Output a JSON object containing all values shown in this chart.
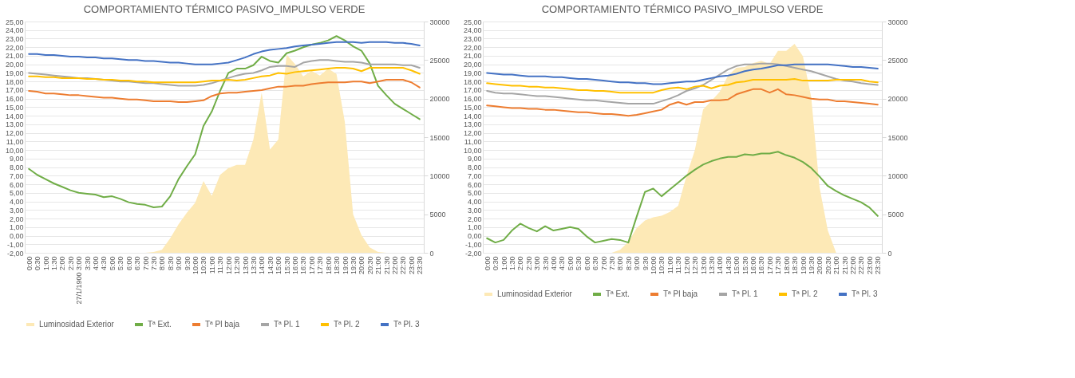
{
  "chart_data": [
    {
      "type": "line",
      "title": "COMPORTAMIENTO TÉRMICO PASIVO_IMPULSO VERDE",
      "grid": "y",
      "legend": "bottom",
      "categories": [
        "0:00",
        "0:30",
        "1:00",
        "1:30",
        "2:00",
        "2:30",
        "27/1/1900 3:00",
        "3:30",
        "4:00",
        "4:30",
        "5:00",
        "5:30",
        "6:00",
        "6:30",
        "7:00",
        "7:30",
        "8:00",
        "8:30",
        "9:00",
        "9:30",
        "10:00",
        "10:30",
        "11:00",
        "11:30",
        "12:00",
        "12:30",
        "13:00",
        "13:30",
        "14:00",
        "14:30",
        "15:00",
        "15:30",
        "16:00",
        "16:30",
        "17:00",
        "17:30",
        "18:00",
        "18:30",
        "19:00",
        "19:30",
        "20:00",
        "20:30",
        "21:00",
        "21:30",
        "22:00",
        "22:30",
        "23:00",
        "23:30"
      ],
      "ylim": [
        -2,
        25
      ],
      "yticks": [
        {
          "value": -2,
          "label": "-2,00"
        },
        {
          "value": -1,
          "label": "-1,00"
        },
        {
          "value": 0,
          "label": "0,00"
        },
        {
          "value": 1,
          "label": "1,00"
        },
        {
          "value": 2,
          "label": "2,00"
        },
        {
          "value": 3,
          "label": "3,00"
        },
        {
          "value": 4,
          "label": "4,00"
        },
        {
          "value": 5,
          "label": "5,00"
        },
        {
          "value": 6,
          "label": "6,00"
        },
        {
          "value": 7,
          "label": "7,00"
        },
        {
          "value": 8,
          "label": "8,00"
        },
        {
          "value": 9,
          "label": "9,00"
        },
        {
          "value": 10,
          "label": "10,00"
        },
        {
          "value": 11,
          "label": "11,00"
        },
        {
          "value": 12,
          "label": "12,00"
        },
        {
          "value": 13,
          "label": "13,00"
        },
        {
          "value": 14,
          "label": "14,00"
        },
        {
          "value": 15,
          "label": "15,00"
        },
        {
          "value": 16,
          "label": "16,00"
        },
        {
          "value": 17,
          "label": "17,00"
        },
        {
          "value": 18,
          "label": "18,00"
        },
        {
          "value": 19,
          "label": "19,00"
        },
        {
          "value": 20,
          "label": "20,00"
        },
        {
          "value": 21,
          "label": "21,00"
        },
        {
          "value": 22,
          "label": "22,00"
        },
        {
          "value": 23,
          "label": "23,00"
        },
        {
          "value": 24,
          "label": "24,00"
        },
        {
          "value": 25,
          "label": "25,00"
        }
      ],
      "y2lim": [
        0,
        30000
      ],
      "y2ticks": [
        0,
        5000,
        10000,
        15000,
        20000,
        25000,
        30000
      ],
      "series": [
        {
          "name": "Luminosidad Exterior",
          "type": "area",
          "axis": "y2",
          "color": "#fde9b6",
          "values": [
            0,
            0,
            0,
            0,
            0,
            0,
            0,
            0,
            0,
            0,
            0,
            0,
            0,
            0,
            0,
            100,
            400,
            1900,
            3700,
            5200,
            6500,
            9300,
            7400,
            10100,
            11000,
            11400,
            11400,
            14700,
            20800,
            13400,
            14700,
            25700,
            24500,
            22900,
            23600,
            23000,
            23900,
            23200,
            17000,
            5000,
            2300,
            700,
            100,
            0,
            0,
            0,
            0,
            0
          ]
        },
        {
          "name": "Tª Ext.",
          "color": "#70ad47",
          "values": [
            7.8,
            7.1,
            6.6,
            6.1,
            5.7,
            5.3,
            5.0,
            4.9,
            4.8,
            4.5,
            4.6,
            4.3,
            3.9,
            3.7,
            3.6,
            3.3,
            3.4,
            4.6,
            6.6,
            8.1,
            9.5,
            12.8,
            14.5,
            16.9,
            19.0,
            19.5,
            19.5,
            19.9,
            20.9,
            20.4,
            20.2,
            21.3,
            21.6,
            22.0,
            22.3,
            22.5,
            22.8,
            23.3,
            22.8,
            22.1,
            21.6,
            20.1,
            17.5,
            16.4,
            15.4,
            14.8,
            14.2,
            13.6
          ]
        },
        {
          "name": "Tª Pl baja",
          "color": "#ed7d31",
          "values": [
            16.9,
            16.8,
            16.6,
            16.6,
            16.5,
            16.4,
            16.4,
            16.3,
            16.2,
            16.1,
            16.1,
            16.0,
            15.9,
            15.9,
            15.8,
            15.7,
            15.7,
            15.7,
            15.6,
            15.6,
            15.7,
            15.8,
            16.3,
            16.6,
            16.7,
            16.7,
            16.8,
            16.9,
            17.0,
            17.2,
            17.4,
            17.4,
            17.5,
            17.5,
            17.7,
            17.8,
            17.9,
            17.9,
            17.9,
            18.0,
            18.0,
            17.8,
            18.0,
            18.2,
            18.2,
            18.2,
            17.9,
            17.3
          ]
        },
        {
          "name": "Tª Pl. 1",
          "color": "#a5a5a5",
          "values": [
            19.0,
            18.9,
            18.8,
            18.7,
            18.6,
            18.5,
            18.4,
            18.4,
            18.3,
            18.2,
            18.1,
            18.0,
            18.0,
            17.9,
            17.8,
            17.8,
            17.7,
            17.6,
            17.5,
            17.5,
            17.5,
            17.6,
            17.8,
            18.1,
            18.4,
            18.7,
            18.9,
            19.0,
            19.3,
            19.7,
            19.8,
            19.8,
            19.7,
            20.2,
            20.4,
            20.5,
            20.5,
            20.4,
            20.3,
            20.3,
            20.2,
            20.0,
            20.0,
            20.0,
            20.0,
            19.9,
            19.9,
            19.6
          ]
        },
        {
          "name": "Tª Pl. 2",
          "color": "#ffc000",
          "values": [
            18.6,
            18.6,
            18.5,
            18.5,
            18.4,
            18.4,
            18.4,
            18.3,
            18.3,
            18.2,
            18.2,
            18.1,
            18.1,
            18.0,
            18.0,
            17.9,
            17.9,
            17.9,
            17.9,
            17.9,
            17.9,
            18.0,
            18.1,
            18.1,
            18.2,
            18.1,
            18.2,
            18.4,
            18.6,
            18.7,
            19.0,
            18.9,
            19.1,
            19.2,
            19.3,
            19.4,
            19.5,
            19.6,
            19.6,
            19.5,
            19.2,
            19.6,
            19.6,
            19.6,
            19.6,
            19.6,
            19.3,
            18.9
          ]
        },
        {
          "name": "Tª Pl. 3",
          "color": "#4472c4",
          "values": [
            21.2,
            21.2,
            21.1,
            21.1,
            21.0,
            20.9,
            20.9,
            20.8,
            20.8,
            20.7,
            20.7,
            20.6,
            20.5,
            20.5,
            20.4,
            20.4,
            20.3,
            20.2,
            20.2,
            20.1,
            20.0,
            20.0,
            20.0,
            20.1,
            20.2,
            20.5,
            20.8,
            21.2,
            21.5,
            21.7,
            21.8,
            21.9,
            22.1,
            22.2,
            22.3,
            22.4,
            22.5,
            22.6,
            22.6,
            22.6,
            22.5,
            22.6,
            22.6,
            22.6,
            22.5,
            22.5,
            22.4,
            22.2
          ]
        }
      ]
    },
    {
      "type": "line",
      "title": "COMPORTAMIENTO TÉRMICO PASIVO_IMPULSO VERDE",
      "grid": "y",
      "legend": "bottom",
      "categories": [
        "0:00",
        "0:30",
        "1:00",
        "1:30",
        "2:00",
        "2:30",
        "3:00",
        "3:30",
        "4:00",
        "4:30",
        "5:00",
        "5:30",
        "6:00",
        "6:30",
        "7:00",
        "7:30",
        "8:00",
        "8:30",
        "9:00",
        "9:30",
        "10:00",
        "10:30",
        "11:00",
        "11:30",
        "12:00",
        "12:30",
        "13:00",
        "13:30",
        "14:00",
        "14:30",
        "15:00",
        "15:30",
        "16:00",
        "16:30",
        "17:00",
        "17:30",
        "18:00",
        "18:30",
        "19:00",
        "19:30",
        "20:00",
        "20:30",
        "21:00",
        "21:30",
        "22:00",
        "22:30",
        "23:00",
        "23:30"
      ],
      "ylim": [
        -2,
        25
      ],
      "yticks": [
        {
          "value": -2,
          "label": "-2,00"
        },
        {
          "value": -1,
          "label": "-1,00"
        },
        {
          "value": 0,
          "label": "0,00"
        },
        {
          "value": 1,
          "label": "1,00"
        },
        {
          "value": 2,
          "label": "2,00"
        },
        {
          "value": 3,
          "label": "3,00"
        },
        {
          "value": 4,
          "label": "4,00"
        },
        {
          "value": 5,
          "label": "5,00"
        },
        {
          "value": 6,
          "label": "6,00"
        },
        {
          "value": 7,
          "label": "7,00"
        },
        {
          "value": 8,
          "label": "8,00"
        },
        {
          "value": 9,
          "label": "9,00"
        },
        {
          "value": 10,
          "label": "10,00"
        },
        {
          "value": 11,
          "label": "11,00"
        },
        {
          "value": 12,
          "label": "12,00"
        },
        {
          "value": 13,
          "label": "13,00"
        },
        {
          "value": 14,
          "label": "14,00"
        },
        {
          "value": 15,
          "label": "15,00"
        },
        {
          "value": 16,
          "label": "16,00"
        },
        {
          "value": 17,
          "label": "17,00"
        },
        {
          "value": 18,
          "label": "18,00"
        },
        {
          "value": 19,
          "label": "19,00"
        },
        {
          "value": 20,
          "label": "20,00"
        },
        {
          "value": 21,
          "label": "21,00"
        },
        {
          "value": 22,
          "label": "22,00"
        },
        {
          "value": 23,
          "label": "23,00"
        },
        {
          "value": 24,
          "label": "24,00"
        },
        {
          "value": 25,
          "label": "25,00"
        }
      ],
      "y2lim": [
        0,
        30000
      ],
      "y2ticks": [
        0,
        5000,
        10000,
        15000,
        20000,
        25000,
        30000
      ],
      "series": [
        {
          "name": "Luminosidad Exterior",
          "type": "area",
          "axis": "y2",
          "color": "#fde9b6",
          "values": [
            0,
            0,
            0,
            0,
            0,
            0,
            0,
            0,
            0,
            0,
            0,
            0,
            0,
            0,
            0,
            0,
            400,
            1400,
            3200,
            4200,
            4600,
            4800,
            5300,
            6100,
            10000,
            13300,
            18600,
            19700,
            20900,
            23000,
            24000,
            24100,
            24600,
            24900,
            24500,
            26200,
            26200,
            27100,
            25500,
            20200,
            8500,
            2900,
            0,
            0,
            0,
            0,
            0,
            0
          ]
        },
        {
          "name": "Tª Ext.",
          "color": "#70ad47",
          "values": [
            -0.3,
            -0.8,
            -0.5,
            0.6,
            1.4,
            0.9,
            0.5,
            1.1,
            0.6,
            0.8,
            1.0,
            0.8,
            -0.1,
            -0.8,
            -0.6,
            -0.4,
            -0.5,
            -0.8,
            2.2,
            5.1,
            5.5,
            4.6,
            5.4,
            6.2,
            7.0,
            7.7,
            8.3,
            8.7,
            9.0,
            9.2,
            9.2,
            9.5,
            9.4,
            9.6,
            9.6,
            9.8,
            9.4,
            9.1,
            8.6,
            7.9,
            6.9,
            5.8,
            5.2,
            4.7,
            4.3,
            3.9,
            3.3,
            2.3
          ]
        },
        {
          "name": "Tª Pl baja",
          "color": "#ed7d31",
          "values": [
            15.2,
            15.1,
            15.0,
            14.9,
            14.9,
            14.8,
            14.8,
            14.7,
            14.7,
            14.6,
            14.5,
            14.4,
            14.4,
            14.3,
            14.2,
            14.2,
            14.1,
            14.0,
            14.1,
            14.3,
            14.5,
            14.7,
            15.3,
            15.6,
            15.3,
            15.6,
            15.6,
            15.8,
            15.8,
            15.9,
            16.5,
            16.8,
            17.1,
            17.1,
            16.7,
            17.1,
            16.5,
            16.4,
            16.2,
            16.0,
            15.9,
            15.9,
            15.7,
            15.7,
            15.6,
            15.5,
            15.4,
            15.3
          ]
        },
        {
          "name": "Tª Pl. 1",
          "color": "#a5a5a5",
          "values": [
            16.9,
            16.7,
            16.6,
            16.6,
            16.5,
            16.4,
            16.3,
            16.3,
            16.2,
            16.1,
            16.0,
            15.9,
            15.8,
            15.8,
            15.7,
            15.6,
            15.5,
            15.4,
            15.4,
            15.4,
            15.4,
            15.7,
            16.0,
            16.4,
            16.9,
            17.2,
            17.6,
            18.2,
            18.8,
            19.4,
            19.8,
            20.0,
            20.0,
            20.1,
            20.1,
            20.0,
            19.8,
            19.6,
            19.4,
            19.2,
            18.9,
            18.6,
            18.3,
            18.1,
            18.0,
            17.8,
            17.7,
            17.6
          ]
        },
        {
          "name": "Tª Pl. 2",
          "color": "#ffc000",
          "values": [
            17.8,
            17.7,
            17.6,
            17.5,
            17.5,
            17.4,
            17.4,
            17.3,
            17.3,
            17.2,
            17.1,
            17.0,
            17.0,
            16.9,
            16.9,
            16.8,
            16.7,
            16.7,
            16.7,
            16.7,
            16.7,
            17.0,
            17.2,
            17.3,
            17.1,
            17.4,
            17.5,
            17.2,
            17.5,
            17.6,
            17.9,
            18.0,
            18.2,
            18.2,
            18.2,
            18.2,
            18.2,
            18.3,
            18.1,
            18.1,
            18.1,
            18.1,
            18.2,
            18.2,
            18.2,
            18.2,
            18.0,
            17.9
          ]
        },
        {
          "name": "Tª Pl. 3",
          "color": "#4472c4",
          "values": [
            19.0,
            18.9,
            18.8,
            18.8,
            18.7,
            18.6,
            18.6,
            18.6,
            18.5,
            18.5,
            18.4,
            18.3,
            18.3,
            18.2,
            18.1,
            18.0,
            17.9,
            17.9,
            17.8,
            17.8,
            17.7,
            17.7,
            17.8,
            17.9,
            18.0,
            18.0,
            18.2,
            18.4,
            18.6,
            18.7,
            18.9,
            19.2,
            19.4,
            19.5,
            19.7,
            19.9,
            19.9,
            20.0,
            20.0,
            20.0,
            20.0,
            20.0,
            19.9,
            19.8,
            19.7,
            19.7,
            19.6,
            19.5
          ]
        }
      ]
    }
  ]
}
